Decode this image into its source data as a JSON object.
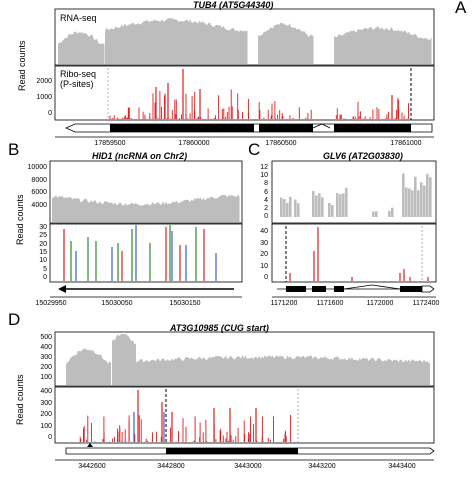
{
  "panels": {
    "A": {
      "letter": "A",
      "title": "TUB4 (AT5G44340)",
      "ylabel": "Read counts",
      "rna_label": "RNA-seq",
      "ribo_label": "Ribo-seq\n(P-sites)",
      "ribo_yticks": [
        "0",
        "1000",
        "2000"
      ],
      "xticks": [
        "17859500",
        "17860000",
        "17860500",
        "17861000"
      ]
    },
    "B": {
      "letter": "B",
      "title": "HID1 (ncRNA on Chr2)",
      "ylabel": "Read counts",
      "rna_yticks": [
        "4000",
        "6000",
        "8000",
        "10000"
      ],
      "ribo_yticks": [
        "0",
        "5",
        "10",
        "15",
        "20",
        "25",
        "30"
      ],
      "xticks": [
        "15029950",
        "15030050",
        "15030150"
      ]
    },
    "C": {
      "letter": "C",
      "title": "GLV6 (AT2G03830)",
      "rna_yticks": [
        "0",
        "2",
        "4",
        "6",
        "8",
        "10",
        "12"
      ],
      "ribo_yticks": [
        "0",
        "10",
        "20",
        "30",
        "40"
      ],
      "xticks": [
        "1171200",
        "1171600",
        "1172000",
        "1172400"
      ]
    },
    "D": {
      "letter": "D",
      "title": "AT3G10985 (CUG start)",
      "ylabel": "Read counts",
      "rna_yticks": [
        "100",
        "200",
        "300",
        "400",
        "500"
      ],
      "ribo_yticks": [
        "0",
        "100",
        "200",
        "300",
        "400"
      ],
      "xticks": [
        "3442600",
        "3442800",
        "3443000",
        "3443200",
        "3443400"
      ]
    }
  },
  "colors": {
    "rna": "#bdbdbd",
    "ribo": "#e21a1c",
    "frame1": "#2b8a2b",
    "frame2": "#3a5fcd",
    "frame3": "#e21a1c",
    "axis": "#000000"
  },
  "chart_data": [
    {
      "type": "area",
      "panel": "A",
      "track": "RNA-seq",
      "xlim": [
        17859200,
        17861100
      ]
    },
    {
      "type": "bar",
      "panel": "A",
      "track": "Ribo-seq (P-sites)",
      "ylim": [
        0,
        2500
      ],
      "xlim": [
        17859200,
        17861100
      ]
    },
    {
      "type": "area",
      "panel": "B",
      "track": "RNA-seq",
      "ylim": [
        2000,
        11000
      ],
      "xlim": [
        15029950,
        15030200
      ]
    },
    {
      "type": "bar",
      "panel": "B",
      "track": "Ribo-seq",
      "ylim": [
        0,
        30
      ],
      "xlim": [
        15029950,
        15030200
      ]
    },
    {
      "type": "bar",
      "panel": "C",
      "track": "RNA-seq",
      "ylim": [
        0,
        12
      ],
      "xlim": [
        1171150,
        1172400
      ]
    },
    {
      "type": "bar",
      "panel": "C",
      "track": "Ribo-seq",
      "ylim": [
        0,
        45
      ],
      "xlim": [
        1171150,
        1172400
      ]
    },
    {
      "type": "area",
      "panel": "D",
      "track": "RNA-seq",
      "ylim": [
        0,
        550
      ],
      "xlim": [
        3442550,
        3443450
      ]
    },
    {
      "type": "bar",
      "panel": "D",
      "track": "Ribo-seq",
      "ylim": [
        0,
        450
      ],
      "xlim": [
        3442550,
        3443450
      ]
    }
  ]
}
